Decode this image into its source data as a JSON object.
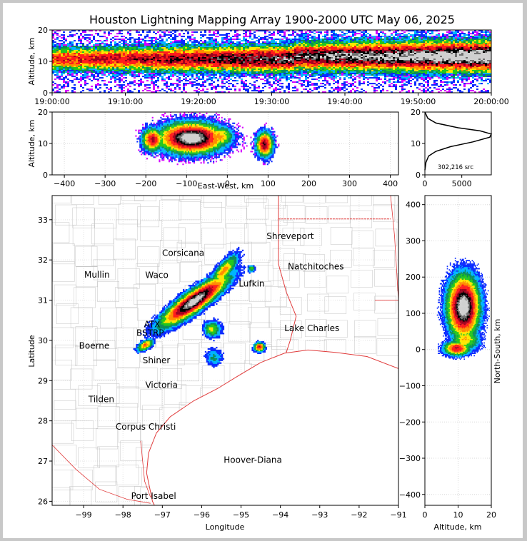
{
  "title": "Houston Lightning Mapping Array 1900-2000 UTC May 06, 2025",
  "colors": {
    "map_lines": "#b0b0b0",
    "coast": "#e03a3a",
    "border": "#e03a3a"
  },
  "chart_data": [
    {
      "id": "time-altitude",
      "type": "heatmap",
      "ylabel": "Altitude, km",
      "ylim": [
        0,
        20
      ],
      "yticks": [
        "0",
        "10",
        "20"
      ],
      "xticks": [
        "19:00:00",
        "19:10:00",
        "19:20:00",
        "19:30:00",
        "19:40:00",
        "19:50:00",
        "20:00:00"
      ]
    },
    {
      "id": "ew-altitude",
      "type": "heatmap",
      "xlabel": "East-West, km",
      "ylabel": "Altitude, km",
      "xlim": [
        -430,
        420
      ],
      "ylim": [
        0,
        20
      ],
      "xticks": [
        "-400",
        "-300",
        "-200",
        "-100",
        "0",
        "100",
        "200",
        "300",
        "400"
      ],
      "yticks": [
        "0",
        "10",
        "20"
      ]
    },
    {
      "id": "altitude-histogram",
      "type": "line",
      "annotation": "302,216 src",
      "xticks": [
        "0",
        "5000"
      ],
      "yticks": [
        "0",
        "10",
        "20"
      ],
      "ylim": [
        0,
        20
      ],
      "x": [
        0,
        30,
        150,
        500,
        1500,
        3500,
        6500,
        8800,
        9000,
        7500,
        4500,
        1500,
        400,
        200,
        0
      ],
      "y": [
        1.5,
        2,
        4,
        6,
        7.5,
        9,
        10.5,
        12,
        13,
        14,
        15,
        16.5,
        18,
        19,
        20
      ]
    },
    {
      "id": "plan-view",
      "type": "heatmap",
      "xlabel": "Longitude",
      "ylabel": "Latitude",
      "xlim": [
        -99.8,
        -91
      ],
      "ylim": [
        25.9,
        33.6
      ],
      "xticks": [
        "−99",
        "−98",
        "−97",
        "−96",
        "−95",
        "−94",
        "−93",
        "−92",
        "−91"
      ],
      "yticks": [
        "26",
        "27",
        "28",
        "29",
        "30",
        "31",
        "32",
        "33"
      ],
      "cities": [
        {
          "name": "Shreveport",
          "lon": -93.75,
          "lat": 32.52,
          "color": "#000000"
        },
        {
          "name": "Corsicana",
          "lon": -96.47,
          "lat": 32.1,
          "color": "#000000"
        },
        {
          "name": "Natchitoches",
          "lon": -93.1,
          "lat": 31.76,
          "color": "#000000"
        },
        {
          "name": "Mullin",
          "lon": -98.66,
          "lat": 31.56,
          "color": "#e8844a"
        },
        {
          "name": "Waco",
          "lon": -97.14,
          "lat": 31.55,
          "color": "#000000"
        },
        {
          "name": "Lufkin",
          "lon": -94.73,
          "lat": 31.34,
          "color": "#000000"
        },
        {
          "name": "Lake Charles",
          "lon": -93.2,
          "lat": 30.23,
          "color": "#000000"
        },
        {
          "name": "ATX",
          "lon": -97.26,
          "lat": 30.33,
          "color": "#e8844a"
        },
        {
          "name": "BSTRP",
          "lon": -97.31,
          "lat": 30.11,
          "color": "#000000"
        },
        {
          "name": "Boerne",
          "lon": -98.73,
          "lat": 29.79,
          "color": "#000000"
        },
        {
          "name": "Shiner",
          "lon": -97.15,
          "lat": 29.43,
          "color": "#000000"
        },
        {
          "name": "Victoria",
          "lon": -97.02,
          "lat": 28.82,
          "color": "#000000"
        },
        {
          "name": "Tilden",
          "lon": -98.55,
          "lat": 28.46,
          "color": "#000000"
        },
        {
          "name": "Corpus Christi",
          "lon": -97.42,
          "lat": 27.78,
          "color": "#000000"
        },
        {
          "name": "Hoover-Diana",
          "lon": -94.7,
          "lat": 26.96,
          "color": "#1a1acc"
        },
        {
          "name": "Port Isabel",
          "lon": -97.22,
          "lat": 26.06,
          "color": "#000000"
        }
      ]
    },
    {
      "id": "altitude-ns",
      "type": "heatmap",
      "xlabel": "Altitude, km",
      "ylabel": "North-South, km",
      "xlim": [
        0,
        20
      ],
      "ylim": [
        -430,
        425
      ],
      "xticks": [
        "0",
        "10",
        "20"
      ],
      "yticks": [
        "−400",
        "−300",
        "−200",
        "−100",
        "0",
        "100",
        "200",
        "300",
        "400"
      ]
    }
  ]
}
